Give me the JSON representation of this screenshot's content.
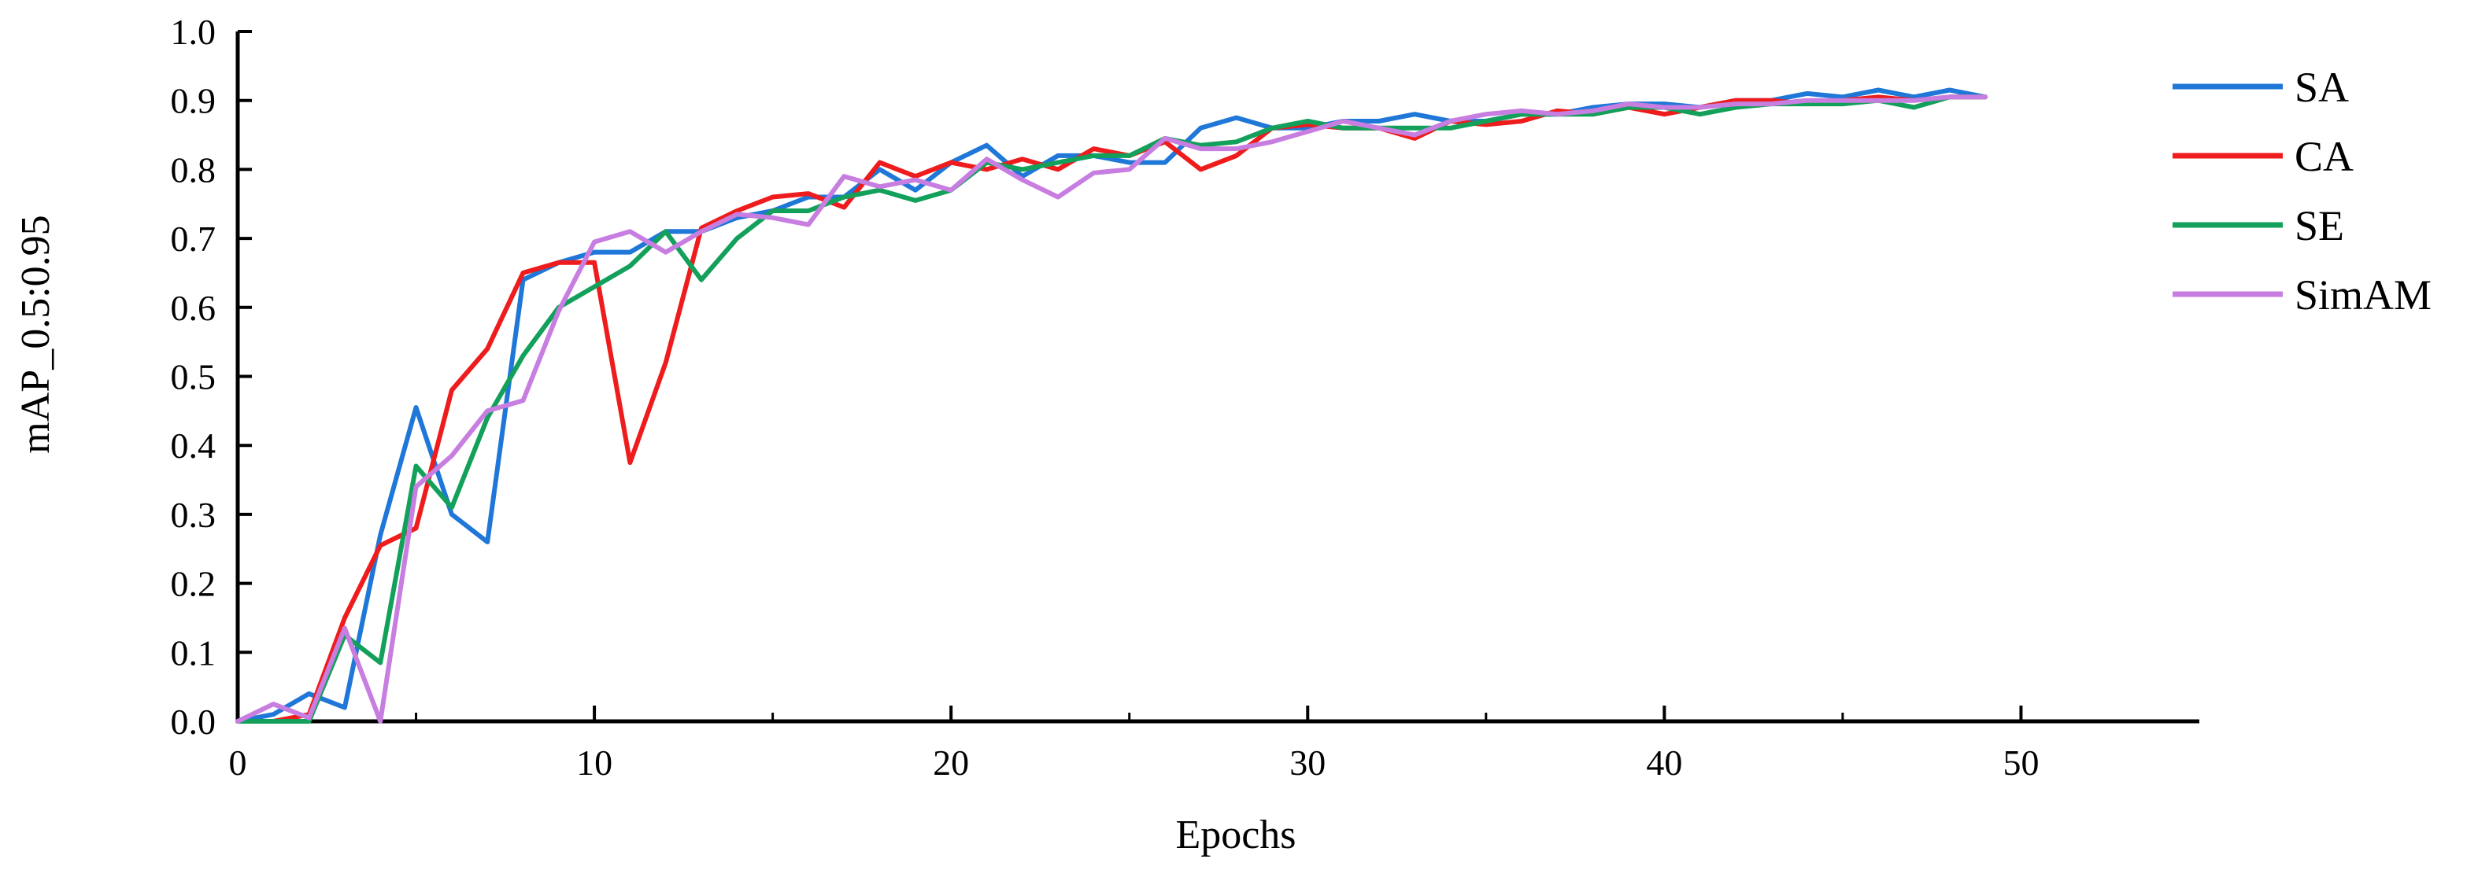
{
  "chart_data": {
    "type": "line",
    "xlabel": "Epochs",
    "ylabel": "mAP_0.5:0.95",
    "xlim": [
      0,
      55
    ],
    "ylim": [
      0,
      1.0
    ],
    "xticks": [
      0,
      10,
      20,
      30,
      40,
      50
    ],
    "xtick_labels": [
      "0",
      "10",
      "20",
      "30",
      "40",
      "50"
    ],
    "yticks": [
      0.0,
      0.1,
      0.2,
      0.3,
      0.4,
      0.5,
      0.6,
      0.7,
      0.8,
      0.9,
      1.0
    ],
    "ytick_labels": [
      "0.0",
      "0.1",
      "0.2",
      "0.3",
      "0.4",
      "0.5",
      "0.6",
      "0.7",
      "0.8",
      "0.9",
      "1.0"
    ],
    "grid": false,
    "legend_position": "right",
    "x": [
      0,
      1,
      2,
      3,
      4,
      5,
      6,
      7,
      8,
      9,
      10,
      11,
      12,
      13,
      14,
      15,
      16,
      17,
      18,
      19,
      20,
      21,
      22,
      23,
      24,
      25,
      26,
      27,
      28,
      29,
      30,
      31,
      32,
      33,
      34,
      35,
      36,
      37,
      38,
      39,
      40,
      41,
      42,
      43,
      44,
      45,
      46,
      47,
      48,
      49
    ],
    "series": [
      {
        "name": "SA",
        "color": "#1f77d8",
        "values": [
          0.0,
          0.01,
          0.04,
          0.02,
          0.27,
          0.455,
          0.3,
          0.26,
          0.64,
          0.665,
          0.68,
          0.68,
          0.71,
          0.71,
          0.73,
          0.74,
          0.76,
          0.76,
          0.8,
          0.77,
          0.81,
          0.835,
          0.79,
          0.82,
          0.82,
          0.81,
          0.81,
          0.86,
          0.875,
          0.86,
          0.86,
          0.87,
          0.87,
          0.88,
          0.87,
          0.87,
          0.88,
          0.88,
          0.89,
          0.895,
          0.895,
          0.89,
          0.9,
          0.9,
          0.91,
          0.905,
          0.915,
          0.905,
          0.915,
          0.905
        ]
      },
      {
        "name": "CA",
        "color": "#ee1c1c",
        "values": [
          0.0,
          0.0,
          0.01,
          0.15,
          0.255,
          0.28,
          0.48,
          0.54,
          0.65,
          0.665,
          0.665,
          0.375,
          0.52,
          0.715,
          0.74,
          0.76,
          0.765,
          0.745,
          0.81,
          0.79,
          0.81,
          0.8,
          0.815,
          0.8,
          0.83,
          0.82,
          0.84,
          0.8,
          0.82,
          0.86,
          0.865,
          0.86,
          0.86,
          0.845,
          0.87,
          0.865,
          0.87,
          0.885,
          0.88,
          0.89,
          0.88,
          0.89,
          0.9,
          0.9,
          0.895,
          0.9,
          0.905,
          0.9,
          0.905,
          0.905
        ]
      },
      {
        "name": "SE",
        "color": "#12a05a",
        "values": [
          0.0,
          0.0,
          0.0,
          0.125,
          0.085,
          0.37,
          0.31,
          0.44,
          0.53,
          0.6,
          0.63,
          0.66,
          0.71,
          0.64,
          0.7,
          0.74,
          0.74,
          0.76,
          0.77,
          0.755,
          0.77,
          0.81,
          0.8,
          0.81,
          0.82,
          0.82,
          0.845,
          0.835,
          0.84,
          0.86,
          0.87,
          0.86,
          0.86,
          0.86,
          0.86,
          0.87,
          0.88,
          0.88,
          0.88,
          0.89,
          0.89,
          0.88,
          0.89,
          0.895,
          0.895,
          0.895,
          0.9,
          0.89,
          0.905,
          0.905
        ]
      },
      {
        "name": "SimAM",
        "color": "#c77ee0",
        "values": [
          0.0,
          0.025,
          0.005,
          0.135,
          0.0,
          0.34,
          0.385,
          0.45,
          0.465,
          0.595,
          0.695,
          0.71,
          0.68,
          0.71,
          0.735,
          0.73,
          0.72,
          0.79,
          0.775,
          0.785,
          0.77,
          0.815,
          0.785,
          0.76,
          0.795,
          0.8,
          0.845,
          0.83,
          0.83,
          0.84,
          0.855,
          0.87,
          0.86,
          0.85,
          0.87,
          0.88,
          0.885,
          0.88,
          0.885,
          0.895,
          0.89,
          0.89,
          0.895,
          0.895,
          0.9,
          0.9,
          0.9,
          0.9,
          0.905,
          0.905
        ]
      }
    ]
  }
}
